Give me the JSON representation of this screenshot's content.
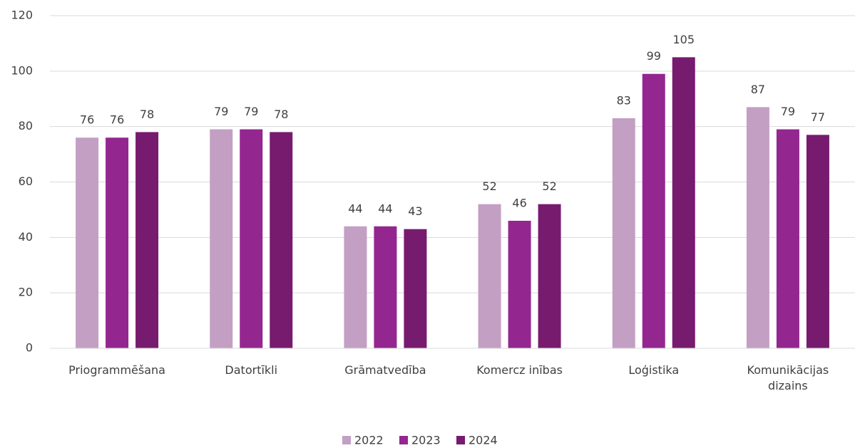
{
  "chart_data": {
    "type": "bar",
    "categories": [
      "Priogrammēšana",
      "Datortīkli",
      "Grāmatvedība",
      "Komercz inības",
      "Loģistika",
      "Komunikācijas dizains"
    ],
    "series": [
      {
        "name": "2022",
        "color": "#c39fc4",
        "values": [
          76,
          79,
          44,
          52,
          83,
          87
        ]
      },
      {
        "name": "2023",
        "color": "#93278f",
        "values": [
          76,
          79,
          44,
          46,
          99,
          79
        ]
      },
      {
        "name": "2024",
        "color": "#771b6f",
        "values": [
          78,
          78,
          43,
          52,
          105,
          77
        ]
      }
    ],
    "ylim": [
      0,
      120
    ],
    "yticks": [
      0,
      20,
      40,
      60,
      80,
      100,
      120
    ],
    "grid": true,
    "legend": "bottom"
  }
}
